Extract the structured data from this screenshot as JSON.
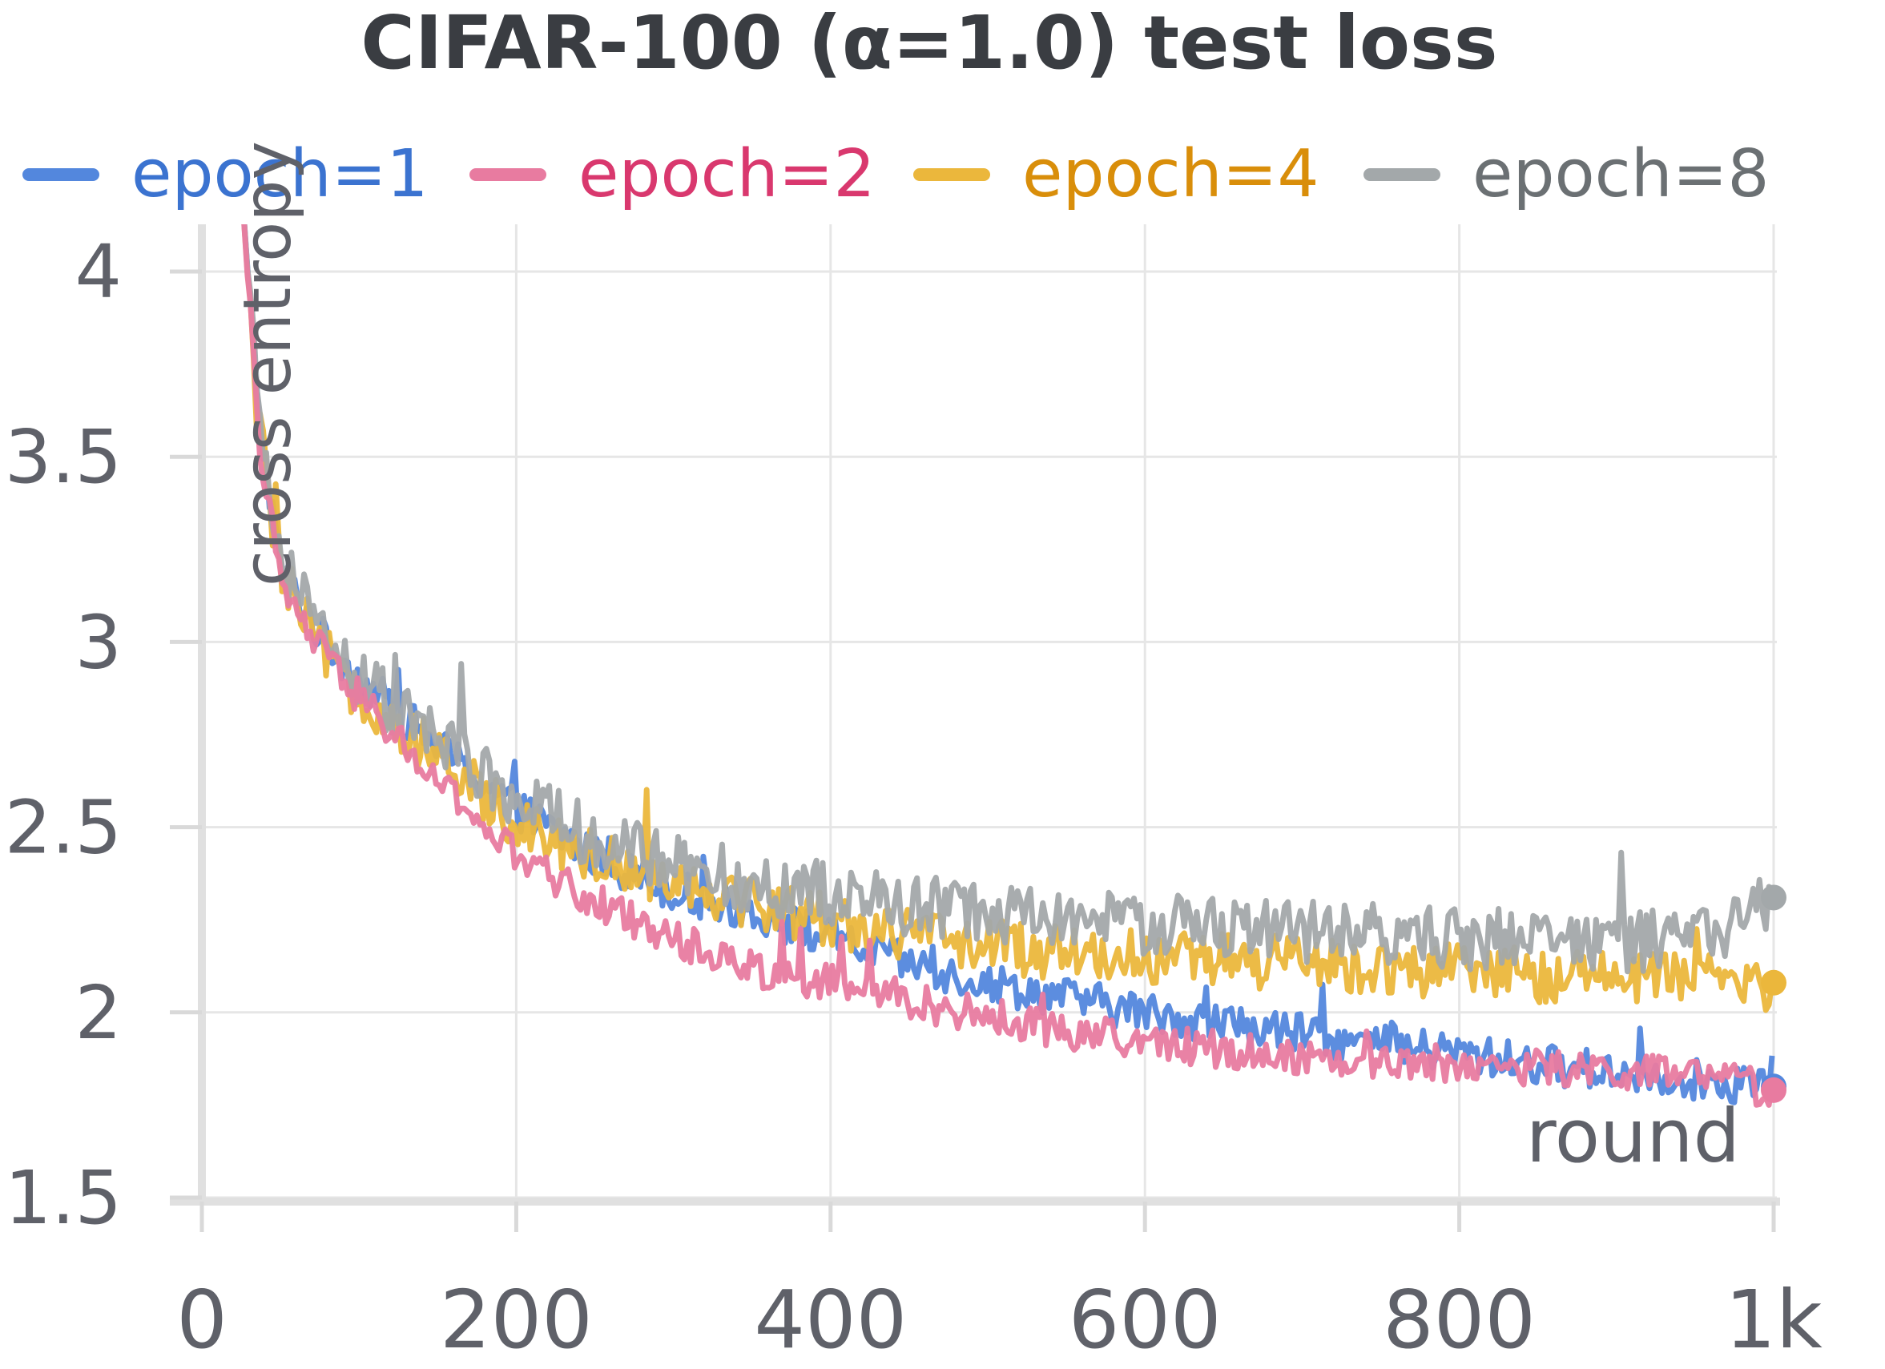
{
  "chart_data": {
    "type": "line",
    "title": "CIFAR-100 (α=1.0) test loss",
    "xlabel": "round",
    "ylabel": "cross entropy",
    "x_ticks": [
      "0",
      "200",
      "400",
      "600",
      "800",
      "1k"
    ],
    "y_ticks": [
      "1.5",
      "2",
      "2.5",
      "3",
      "3.5",
      "4"
    ],
    "xlim": [
      0,
      1000
    ],
    "ylim": [
      1.5,
      4.2
    ],
    "grid": true,
    "legend_position": "top",
    "series": [
      {
        "name": "epoch=1",
        "color": "#5387dd",
        "label_color": "#3b73d0",
        "x": [
          25,
          35,
          50,
          75,
          100,
          150,
          200,
          250,
          300,
          350,
          400,
          450,
          500,
          550,
          600,
          650,
          700,
          750,
          800,
          850,
          900,
          950,
          1000
        ],
        "values": [
          4.25,
          3.65,
          3.2,
          3.02,
          2.9,
          2.72,
          2.55,
          2.42,
          2.33,
          2.27,
          2.2,
          2.13,
          2.08,
          2.04,
          2.0,
          1.97,
          1.94,
          1.91,
          1.89,
          1.86,
          1.84,
          1.82,
          1.8
        ],
        "end_value": 1.8
      },
      {
        "name": "epoch=2",
        "color": "#e87ba0",
        "label_color": "#d9386e",
        "x": [
          25,
          35,
          50,
          75,
          100,
          150,
          200,
          250,
          300,
          350,
          400,
          450,
          500,
          550,
          600,
          650,
          700,
          750,
          800,
          850,
          900,
          950,
          1000
        ],
        "values": [
          4.25,
          3.6,
          3.15,
          2.98,
          2.85,
          2.62,
          2.42,
          2.3,
          2.2,
          2.12,
          2.08,
          2.03,
          1.99,
          1.95,
          1.92,
          1.9,
          1.88,
          1.87,
          1.86,
          1.85,
          1.84,
          1.83,
          1.79
        ],
        "end_value": 1.79
      },
      {
        "name": "epoch=4",
        "color": "#ebb73c",
        "label_color": "#d98e0a",
        "x": [
          25,
          35,
          50,
          75,
          100,
          150,
          200,
          250,
          300,
          350,
          400,
          450,
          500,
          550,
          600,
          650,
          700,
          750,
          800,
          850,
          900,
          950,
          1000
        ],
        "values": [
          4.25,
          3.62,
          3.18,
          2.98,
          2.86,
          2.68,
          2.52,
          2.42,
          2.36,
          2.3,
          2.25,
          2.21,
          2.18,
          2.16,
          2.15,
          2.14,
          2.13,
          2.12,
          2.11,
          2.1,
          2.1,
          2.09,
          2.08
        ],
        "end_value": 2.08
      },
      {
        "name": "epoch=8",
        "color": "#a3a8aa",
        "label_color": "#6b7073",
        "x": [
          25,
          35,
          50,
          75,
          100,
          150,
          200,
          250,
          300,
          350,
          400,
          450,
          500,
          550,
          600,
          650,
          700,
          750,
          800,
          850,
          900,
          950,
          1000
        ],
        "values": [
          4.25,
          3.64,
          3.22,
          3.02,
          2.9,
          2.73,
          2.58,
          2.47,
          2.4,
          2.35,
          2.32,
          2.29,
          2.27,
          2.25,
          2.24,
          2.23,
          2.22,
          2.21,
          2.2,
          2.2,
          2.19,
          2.19,
          2.31
        ],
        "end_value": 2.31
      }
    ]
  }
}
